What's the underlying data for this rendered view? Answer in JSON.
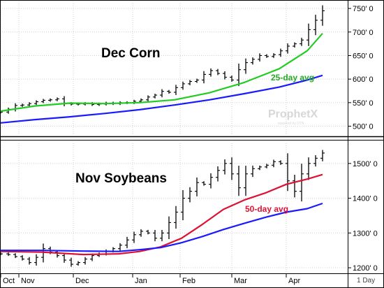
{
  "chart_data": [
    {
      "type": "ohlc",
      "title": "Dec Corn",
      "annotation": "25-day avg",
      "ylim": [
        480,
        765
      ],
      "yticks": [
        500,
        550,
        600,
        650,
        700,
        750
      ],
      "ytick_labels": [
        "500' 0",
        "550' 0",
        "600' 0",
        "650' 0",
        "700' 0",
        "750' 0"
      ],
      "series": [
        {
          "name": "price",
          "color": "#000000",
          "x": [
            1,
            12,
            22,
            32,
            42,
            52,
            62,
            72,
            82,
            92,
            102,
            112,
            122,
            132,
            142,
            152,
            162,
            172,
            182,
            192,
            202,
            212,
            222,
            232,
            242,
            252,
            262,
            272,
            282,
            292,
            302,
            312,
            322,
            332,
            342,
            352,
            362,
            372,
            382,
            392,
            402,
            412,
            422,
            432,
            442,
            452,
            462
          ],
          "y": [
            530,
            536,
            544,
            545,
            548,
            552,
            555,
            556,
            558,
            548,
            547,
            547,
            548,
            546,
            547,
            549,
            548,
            550,
            550,
            553,
            556,
            562,
            566,
            574,
            572,
            582,
            590,
            595,
            598,
            610,
            618,
            612,
            604,
            598,
            620,
            635,
            642,
            650,
            648,
            652,
            660,
            670,
            675,
            683,
            705,
            725,
            745
          ]
        },
        {
          "name": "25-day avg",
          "color": "#22cc22",
          "x": [
            1,
            50,
            100,
            150,
            200,
            250,
            300,
            350,
            400,
            440,
            462
          ],
          "y": [
            532,
            543,
            549,
            548,
            550,
            556,
            571,
            593,
            622,
            660,
            697
          ]
        },
        {
          "name": "long avg",
          "color": "#1a1aff",
          "x": [
            1,
            50,
            100,
            150,
            200,
            250,
            300,
            350,
            400,
            440,
            462
          ],
          "y": [
            507,
            514,
            520,
            527,
            535,
            545,
            556,
            569,
            583,
            598,
            608
          ]
        }
      ]
    },
    {
      "type": "ohlc",
      "title": "Nov Soybeans",
      "annotation": "50-day avg",
      "ylim": [
        1186,
        1564
      ],
      "yticks": [
        1200,
        1300,
        1400,
        1500
      ],
      "ytick_labels": [
        "1200' 0",
        "1300' 0",
        "1400' 0",
        "1500' 0"
      ],
      "series": [
        {
          "name": "price",
          "color": "#000000",
          "x": [
            1,
            12,
            22,
            32,
            42,
            52,
            62,
            72,
            82,
            92,
            102,
            112,
            122,
            132,
            142,
            152,
            162,
            172,
            182,
            192,
            202,
            212,
            222,
            232,
            242,
            252,
            262,
            272,
            282,
            292,
            302,
            312,
            322,
            332,
            342,
            352,
            362,
            372,
            382,
            392,
            402,
            412,
            422,
            432,
            442,
            452,
            462
          ],
          "y": [
            1240,
            1238,
            1232,
            1225,
            1215,
            1230,
            1255,
            1245,
            1235,
            1222,
            1210,
            1215,
            1225,
            1235,
            1240,
            1248,
            1255,
            1265,
            1280,
            1295,
            1305,
            1300,
            1285,
            1300,
            1330,
            1360,
            1400,
            1420,
            1445,
            1440,
            1460,
            1480,
            1500,
            1470,
            1430,
            1470,
            1485,
            1490,
            1495,
            1505,
            1500,
            1450,
            1420,
            1470,
            1500,
            1515,
            1530
          ]
        },
        {
          "name": "50-day avg",
          "color": "#dd1133",
          "x": [
            1,
            60,
            120,
            170,
            200,
            230,
            260,
            290,
            320,
            350,
            380,
            410,
            440,
            462
          ],
          "y": [
            1247,
            1245,
            1238,
            1240,
            1247,
            1260,
            1285,
            1325,
            1368,
            1395,
            1415,
            1440,
            1455,
            1468
          ]
        },
        {
          "name": "long avg",
          "color": "#1a1aff",
          "x": [
            1,
            60,
            120,
            170,
            200,
            230,
            260,
            290,
            320,
            350,
            380,
            410,
            440,
            462
          ],
          "y": [
            1250,
            1250,
            1248,
            1247,
            1252,
            1258,
            1272,
            1290,
            1310,
            1328,
            1345,
            1360,
            1370,
            1385
          ]
        }
      ]
    }
  ],
  "x_axis": {
    "labels": [
      "Oct",
      "Nov",
      "Dec",
      "Jan",
      "Feb",
      "Mar",
      "Apr"
    ],
    "positions": [
      1,
      27,
      105,
      190,
      258,
      332,
      410
    ],
    "period": "1 Day"
  },
  "watermark": {
    "brand": "ProphetX",
    "sub": "powered by DTN"
  }
}
